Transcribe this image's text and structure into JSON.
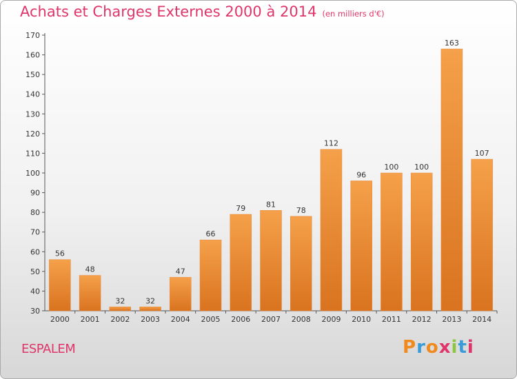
{
  "chart_data": {
    "type": "bar",
    "title": "Achats et Charges Externes 2000 à 2014",
    "subtitle": "(en milliers d'€)",
    "categories": [
      "2000",
      "2001",
      "2002",
      "2003",
      "2004",
      "2005",
      "2006",
      "2007",
      "2008",
      "2009",
      "2010",
      "2011",
      "2012",
      "2013",
      "2014"
    ],
    "values": [
      56,
      48,
      32,
      32,
      47,
      66,
      79,
      81,
      78,
      112,
      96,
      100,
      100,
      163,
      107
    ],
    "ylim": [
      30,
      170
    ],
    "yticks": [
      30,
      40,
      50,
      60,
      70,
      80,
      90,
      100,
      110,
      120,
      130,
      140,
      150,
      160,
      170
    ],
    "grid": false,
    "bar_color": "#f5a04a",
    "bar_color_dark": "#d9731f",
    "text_color": "#e0356a"
  },
  "location": "ESPALEM",
  "logo": {
    "letters": [
      "P",
      "r",
      "o",
      "x",
      "i",
      "t",
      "i"
    ],
    "colors": [
      "#f08a1c",
      "#3a9bd9",
      "#f08a1c",
      "#e0356a",
      "#8dc63f",
      "#3a9bd9",
      "#e0356a"
    ]
  }
}
